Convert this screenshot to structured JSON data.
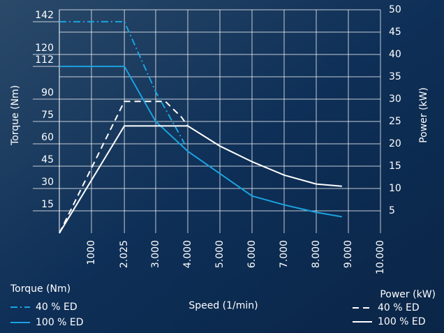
{
  "chart_data": {
    "type": "line",
    "xlabel": "Speed (1/min)",
    "ylabel": "Torque (Nm)",
    "y2label": "Power (kW)",
    "xlim": [
      0,
      10000
    ],
    "ylim": [
      0,
      150
    ],
    "y2lim": [
      0,
      50
    ],
    "xticks": [
      1000,
      {
        "value": 2025,
        "label": "2.025"
      },
      {
        "value": 3000,
        "label": "3.000"
      },
      {
        "value": 4000,
        "label": "4.000"
      },
      {
        "value": 5000,
        "label": "5.000"
      },
      {
        "value": 6000,
        "label": "6.000"
      },
      {
        "value": 7000,
        "label": "7.000"
      },
      {
        "value": 8000,
        "label": "8.000"
      },
      {
        "value": 9000,
        "label": "9.000"
      },
      {
        "value": 10000,
        "label": "10.000"
      }
    ],
    "yticks": [
      15,
      30,
      45,
      60,
      75,
      90,
      112,
      120,
      142
    ],
    "y2ticks": [
      5,
      10,
      15,
      20,
      25,
      30,
      35,
      40,
      45,
      50
    ],
    "grid": true,
    "series": [
      {
        "name": "40 % ED",
        "legend": "Torque (Nm)",
        "color": "#1aa3e0",
        "dash": "dashdot",
        "x": [
          0,
          2025,
          3000,
          3700,
          3900
        ],
        "values": [
          142,
          142,
          95,
          68,
          60
        ]
      },
      {
        "name": "100 % ED",
        "legend": "Torque (Nm)",
        "color": "#1aa3e0",
        "dash": "solid",
        "x": [
          0,
          2025,
          3000,
          4000,
          5000,
          6000,
          7000,
          8000,
          8800
        ],
        "values": [
          112,
          112,
          75,
          55,
          40,
          25,
          19,
          14,
          11
        ]
      },
      {
        "name": "40 % ED",
        "legend": "Power (kW)",
        "axis": "y2",
        "color": "#ffffff",
        "dash": "dash",
        "x": [
          0,
          2025,
          3300,
          3800,
          4000
        ],
        "values": [
          0,
          29.5,
          29.5,
          26,
          24
        ]
      },
      {
        "name": "100 % ED",
        "legend": "Power (kW)",
        "axis": "y2",
        "color": "#ffffff",
        "dash": "solid",
        "x": [
          0,
          2025,
          4000,
          5000,
          6000,
          7000,
          8000,
          8800
        ],
        "values": [
          0,
          24,
          24,
          19.5,
          16,
          13,
          11,
          10.5
        ]
      }
    ]
  }
}
